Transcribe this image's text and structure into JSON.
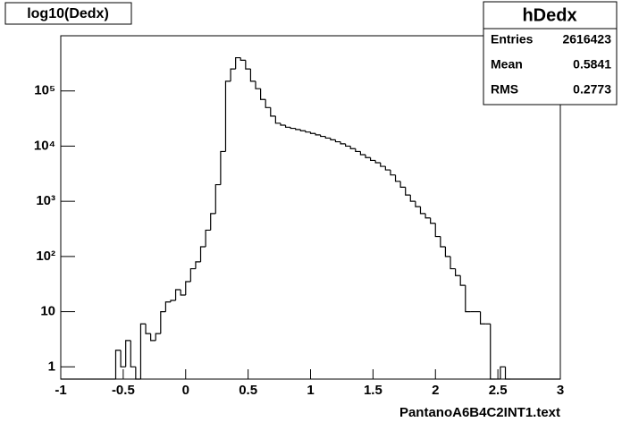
{
  "chart_data": {
    "type": "histogram",
    "title": "log10(Dedx)",
    "x_label": "PantanoA6B4C2INT1.text",
    "bins": [
      -1,
      -0.96,
      -0.92,
      -0.88,
      -0.84,
      -0.8,
      -0.76,
      -0.72,
      -0.68,
      -0.64,
      -0.6,
      -0.56,
      -0.52,
      -0.48,
      -0.44,
      -0.4,
      -0.36,
      -0.32,
      -0.28,
      -0.24,
      -0.2,
      -0.16,
      -0.12,
      -0.08,
      -0.04,
      0,
      0.04,
      0.08,
      0.12,
      0.16,
      0.2,
      0.24,
      0.28,
      0.32,
      0.36,
      0.4,
      0.44,
      0.48,
      0.52,
      0.56,
      0.6,
      0.64,
      0.68,
      0.72,
      0.76,
      0.8,
      0.84,
      0.88,
      0.92,
      0.96,
      1,
      1.04,
      1.08,
      1.12,
      1.16,
      1.2,
      1.24,
      1.28,
      1.32,
      1.36,
      1.4,
      1.44,
      1.48,
      1.52,
      1.56,
      1.6,
      1.64,
      1.68,
      1.72,
      1.76,
      1.8,
      1.84,
      1.88,
      1.92,
      1.96,
      2,
      2.04,
      2.08,
      2.12,
      2.16,
      2.2,
      2.24,
      2.28,
      2.32,
      2.36,
      2.4,
      2.44,
      2.48,
      2.52,
      2.56,
      2.6,
      2.64,
      2.68,
      2.72,
      2.76,
      2.8,
      2.84,
      2.88,
      2.92,
      2.96,
      3
    ],
    "counts": [
      0,
      0,
      0,
      0,
      0,
      0,
      0,
      0,
      0,
      0,
      0,
      2,
      1,
      3,
      1,
      0,
      6,
      4,
      3,
      4,
      10,
      15,
      16,
      25,
      20,
      35,
      60,
      80,
      150,
      300,
      600,
      2000,
      8000,
      150000,
      250000,
      400000,
      360000,
      250000,
      150000,
      110000,
      70000,
      50000,
      35000,
      26000,
      24000,
      22000,
      21000,
      20000,
      19000,
      18000,
      17000,
      16000,
      15000,
      14000,
      13000,
      12000,
      11000,
      10000,
      9000,
      8000,
      7000,
      6200,
      5500,
      5000,
      4300,
      3700,
      3000,
      2300,
      1800,
      1300,
      1000,
      800,
      600,
      500,
      400,
      230,
      150,
      100,
      60,
      45,
      30,
      10,
      10,
      10,
      6,
      6,
      0,
      0,
      1,
      0,
      0,
      0,
      0,
      0,
      0,
      0,
      0,
      0,
      0,
      0
    ],
    "color": "#000000",
    "xlim": [
      -1,
      3
    ],
    "xticks": [
      -1,
      -0.5,
      0,
      0.5,
      1,
      1.5,
      2,
      2.5,
      3
    ],
    "ylim": [
      0.6,
      1000000
    ],
    "log_y": true,
    "yticks": [
      1,
      10,
      {
        "value": 100,
        "label": "10²"
      },
      {
        "value": 1000,
        "label": "10³"
      },
      {
        "value": 10000,
        "label": "10⁴"
      },
      {
        "value": 100000,
        "label": "10⁵"
      }
    ],
    "stats_box": {
      "title": "hDedx",
      "rows": [
        [
          "Entries",
          "2616423"
        ],
        [
          "Mean",
          "0.5841"
        ],
        [
          "RMS",
          "0.2773"
        ]
      ]
    }
  }
}
